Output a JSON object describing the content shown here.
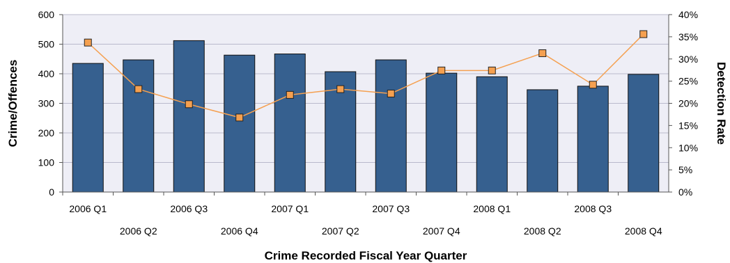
{
  "chart_data": {
    "type": "bar",
    "categories": [
      "2006 Q1",
      "2006 Q2",
      "2006 Q3",
      "2006 Q4",
      "2007 Q1",
      "2007 Q2",
      "2007 Q3",
      "2007 Q4",
      "2008 Q1",
      "2008 Q2",
      "2008 Q3",
      "2008 Q4"
    ],
    "series": [
      {
        "type": "bar",
        "axis": "left",
        "color": "#36608f",
        "values": [
          435,
          447,
          512,
          463,
          467,
          407,
          447,
          402,
          390,
          346,
          358,
          398
        ]
      },
      {
        "type": "line",
        "axis": "right",
        "color": "#f5a050",
        "marker_fill": "#f5a050",
        "values": [
          33.7,
          23.2,
          19.8,
          16.8,
          21.9,
          23.2,
          22.2,
          27.4,
          27.4,
          31.3,
          24.2,
          35.6
        ]
      }
    ],
    "xlabel": "Crime Recorded Fiscal Year Quarter",
    "ylabel": "Crime/Offences",
    "y2label": "Detection Rate",
    "ylim": [
      0,
      600
    ],
    "yticks": [
      "0",
      "100",
      "200",
      "300",
      "400",
      "500",
      "600"
    ],
    "y2lim": [
      0,
      40
    ],
    "y2ticks": [
      "0%",
      "5%",
      "10%",
      "15%",
      "20%",
      "25%",
      "30%",
      "35%",
      "40%"
    ],
    "plot_background": "#eeeef6",
    "grid": true
  }
}
